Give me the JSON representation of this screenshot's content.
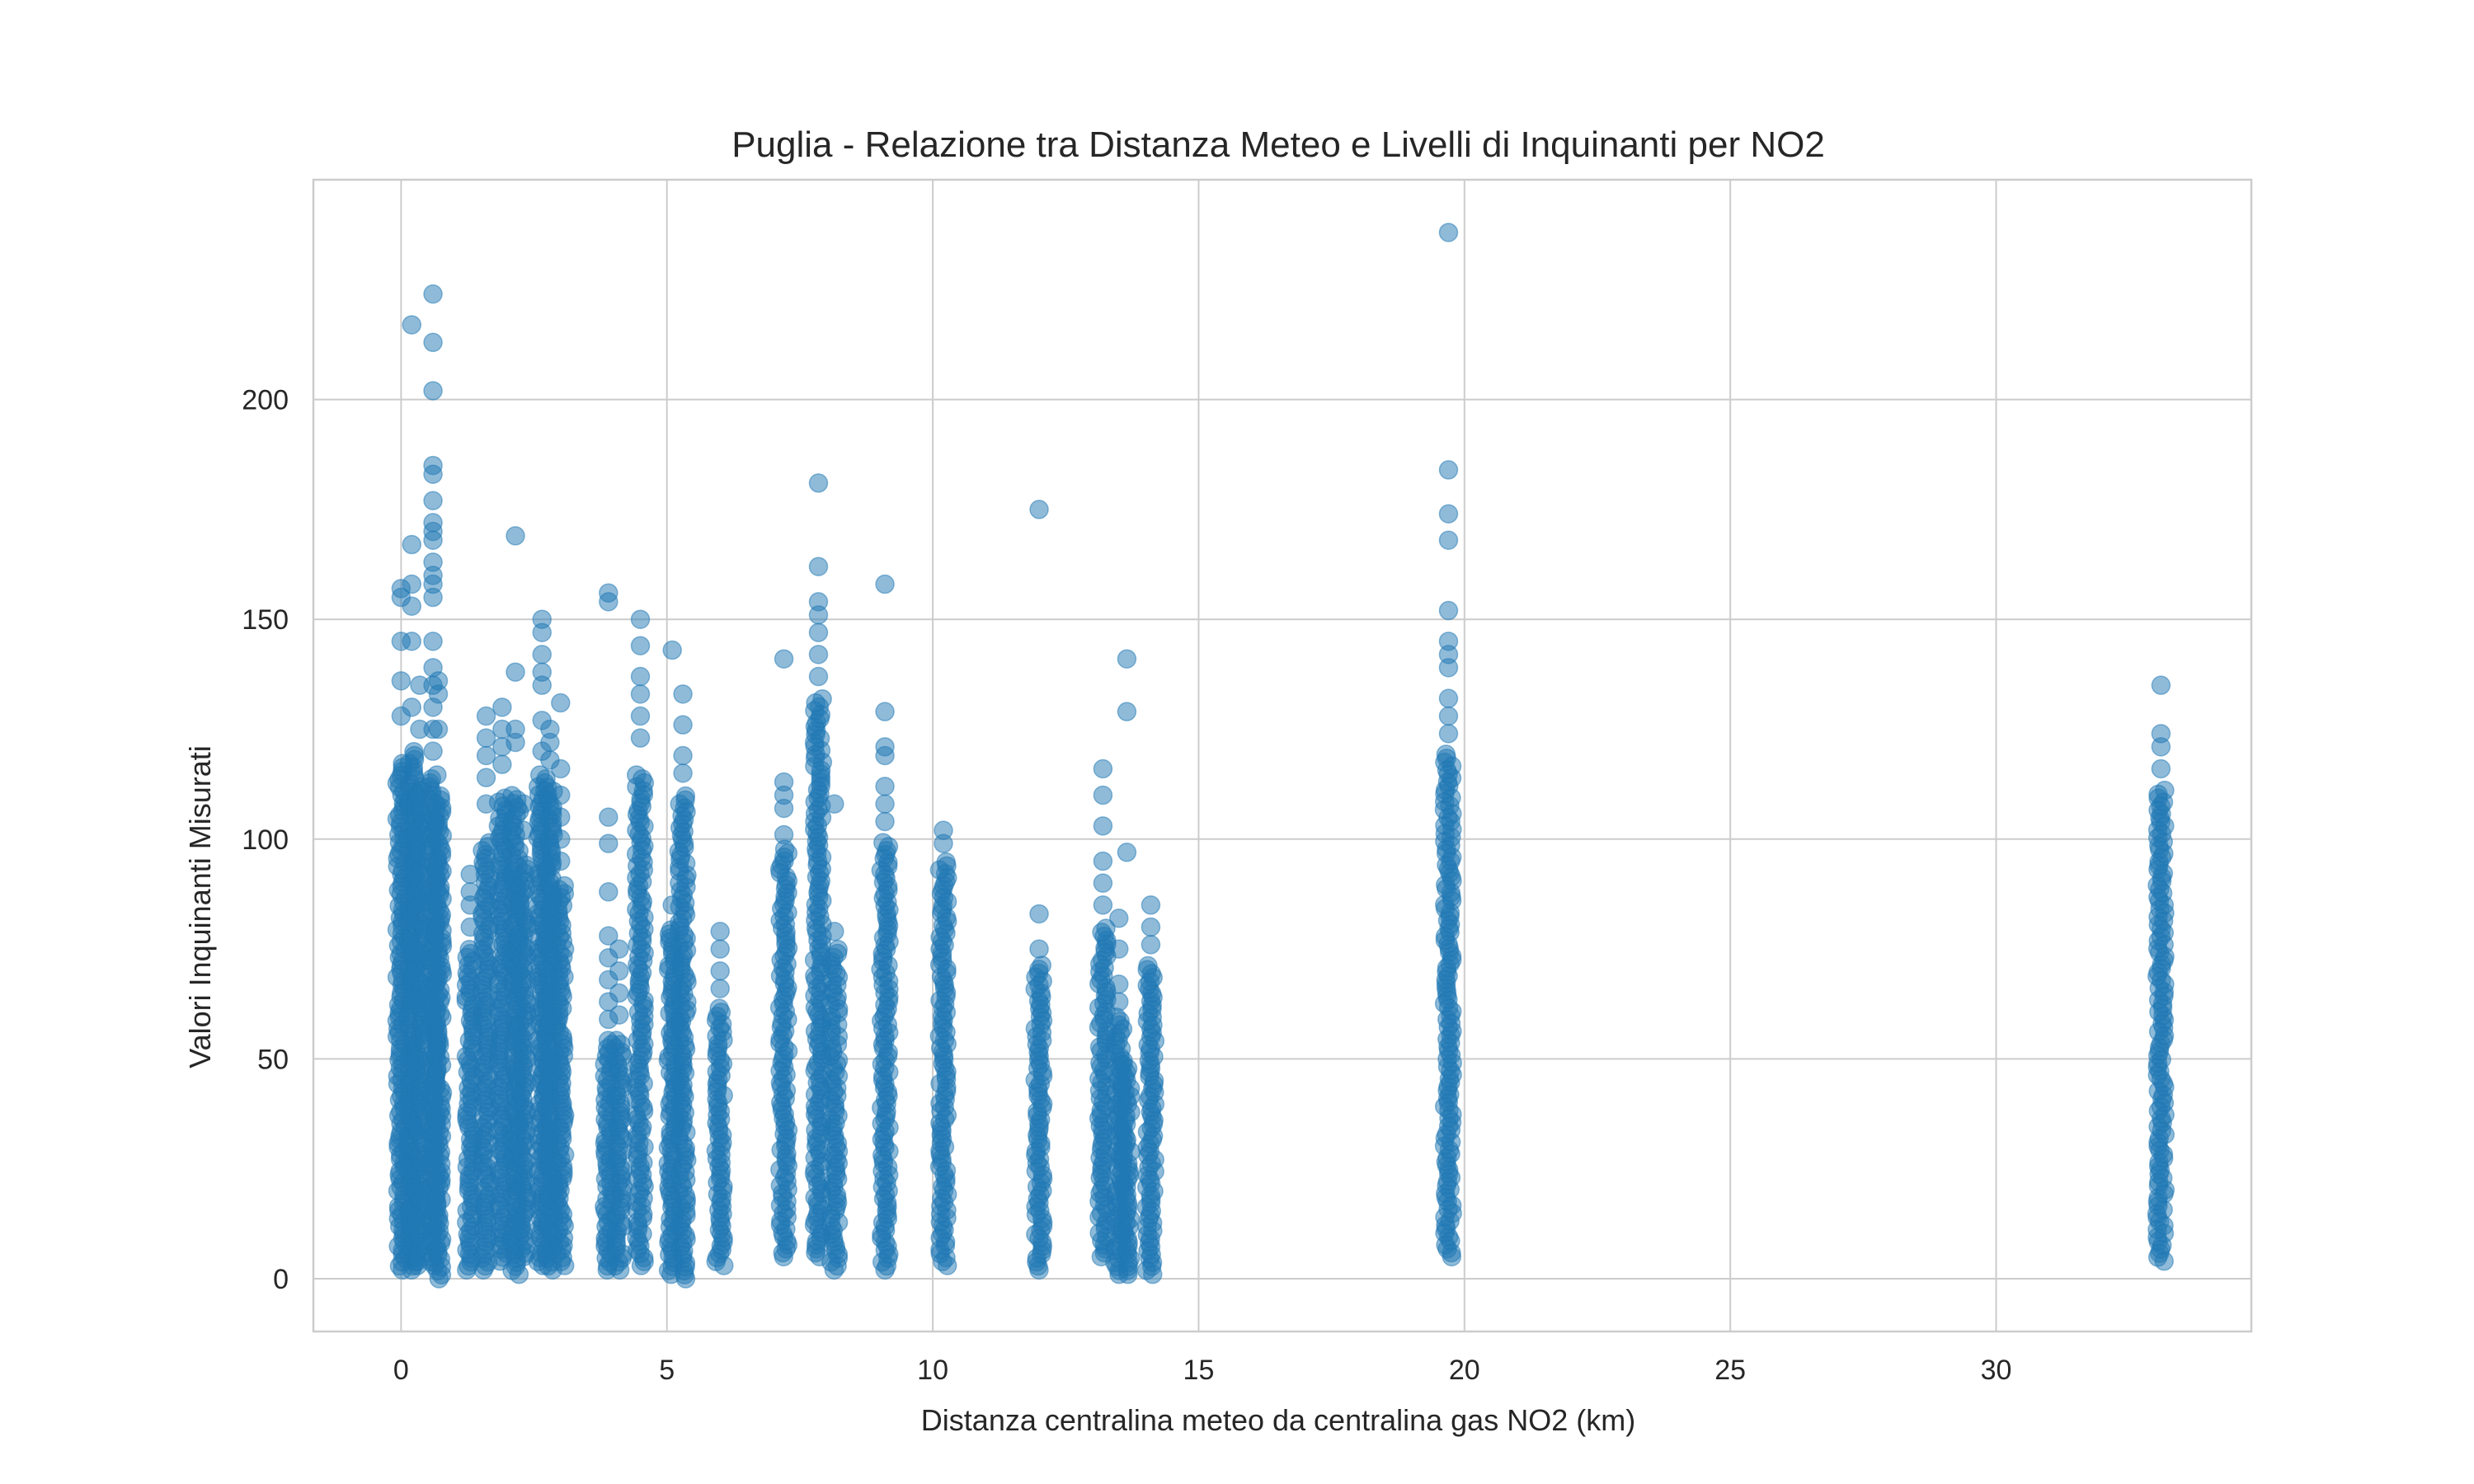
{
  "chart_data": {
    "type": "scatter",
    "title": "Puglia - Relazione tra Distanza Meteo e Livelli di Inquinanti per NO2",
    "xlabel": "Distanza centralina meteo da centralina gas NO2 (km)",
    "ylabel": "Valori Inquinanti Misurati",
    "xlim": [
      -1.65,
      34.8
    ],
    "ylim": [
      -12,
      250
    ],
    "xticks": [
      0,
      5,
      10,
      15,
      20,
      25,
      30
    ],
    "yticks": [
      0,
      50,
      100,
      150,
      200
    ],
    "grid": true,
    "marker_color": "#1f77b4",
    "marker_alpha": 0.5,
    "columns": [
      {
        "x": 0.0,
        "dense": [
          2,
          118
        ],
        "outliers": [
          128,
          136,
          145,
          155,
          157
        ]
      },
      {
        "x": 0.2,
        "dense": [
          2,
          120
        ],
        "outliers": [
          130,
          145,
          153,
          158,
          167,
          217
        ]
      },
      {
        "x": 0.35,
        "dense": [
          3,
          112
        ],
        "outliers": [
          125,
          135
        ]
      },
      {
        "x": 0.6,
        "dense": [
          3,
          115
        ],
        "outliers": [
          120,
          125,
          130,
          135,
          139,
          145,
          155,
          158,
          160,
          163,
          168,
          170,
          172,
          177,
          183,
          185,
          202,
          213,
          224
        ]
      },
      {
        "x": 0.7,
        "dense": [
          0,
          110
        ],
        "outliers": [
          125,
          133,
          136
        ]
      },
      {
        "x": 1.3,
        "dense": [
          2,
          75
        ],
        "outliers": [
          80,
          85,
          88,
          92
        ]
      },
      {
        "x": 1.6,
        "dense": [
          2,
          100
        ],
        "outliers": [
          108,
          114,
          119,
          123,
          128
        ]
      },
      {
        "x": 1.9,
        "dense": [
          4,
          110
        ],
        "outliers": [
          117,
          121,
          125,
          130
        ]
      },
      {
        "x": 2.15,
        "dense": [
          1,
          110
        ],
        "outliers": [
          122,
          125,
          138,
          169
        ]
      },
      {
        "x": 2.3,
        "dense": [
          5,
          95
        ],
        "outliers": [
          102,
          108
        ]
      },
      {
        "x": 2.65,
        "dense": [
          3,
          115
        ],
        "outliers": [
          120,
          127,
          135,
          138,
          142,
          147,
          150
        ]
      },
      {
        "x": 2.8,
        "dense": [
          2,
          112
        ],
        "outliers": [
          118,
          122,
          125
        ]
      },
      {
        "x": 3.0,
        "dense": [
          3,
          90
        ],
        "outliers": [
          95,
          100,
          105,
          110,
          116,
          131
        ]
      },
      {
        "x": 3.9,
        "dense": [
          2,
          55
        ],
        "outliers": [
          59,
          63,
          68,
          73,
          78,
          88,
          99,
          105,
          154,
          156
        ]
      },
      {
        "x": 4.1,
        "dense": [
          2,
          55
        ],
        "outliers": [
          60,
          65,
          70,
          75
        ]
      },
      {
        "x": 4.5,
        "dense": [
          3,
          115
        ],
        "outliers": [
          123,
          128,
          133,
          137,
          144,
          150
        ]
      },
      {
        "x": 5.1,
        "dense": [
          1,
          80
        ],
        "outliers": [
          85,
          143
        ]
      },
      {
        "x": 5.3,
        "dense": [
          0,
          110
        ],
        "outliers": [
          115,
          119,
          126,
          133
        ]
      },
      {
        "x": 6.0,
        "dense": [
          3,
          62
        ],
        "outliers": [
          66,
          70,
          75,
          79
        ]
      },
      {
        "x": 7.2,
        "dense": [
          5,
          98
        ],
        "outliers": [
          101,
          107,
          110,
          113,
          141
        ]
      },
      {
        "x": 7.85,
        "dense": [
          5,
          132
        ],
        "outliers": [
          137,
          142,
          147,
          151,
          154,
          162,
          181
        ]
      },
      {
        "x": 8.15,
        "dense": [
          2,
          75
        ],
        "outliers": [
          79,
          108
        ]
      },
      {
        "x": 9.1,
        "dense": [
          2,
          100
        ],
        "outliers": [
          104,
          108,
          112,
          119,
          121,
          129,
          158
        ]
      },
      {
        "x": 10.2,
        "dense": [
          3,
          95
        ],
        "outliers": [
          99,
          102
        ]
      },
      {
        "x": 12.0,
        "dense": [
          2,
          72
        ],
        "outliers": [
          75,
          83,
          175
        ]
      },
      {
        "x": 13.2,
        "dense": [
          5,
          80
        ],
        "outliers": [
          85,
          90,
          95,
          103,
          110,
          116
        ]
      },
      {
        "x": 13.5,
        "dense": [
          1,
          60
        ],
        "outliers": [
          63,
          67,
          75,
          82
        ]
      },
      {
        "x": 13.65,
        "dense": [
          1,
          50
        ],
        "outliers": [
          97,
          129,
          141
        ]
      },
      {
        "x": 14.1,
        "dense": [
          1,
          72
        ],
        "outliers": [
          76,
          80,
          85
        ]
      },
      {
        "x": 19.7,
        "dense": [
          5,
          120
        ],
        "outliers": [
          124,
          128,
          132,
          139,
          142,
          145,
          152,
          168,
          174,
          184,
          238
        ]
      },
      {
        "x": 33.1,
        "dense": [
          4,
          112
        ],
        "outliers": [
          116,
          121,
          124,
          135
        ]
      }
    ]
  }
}
